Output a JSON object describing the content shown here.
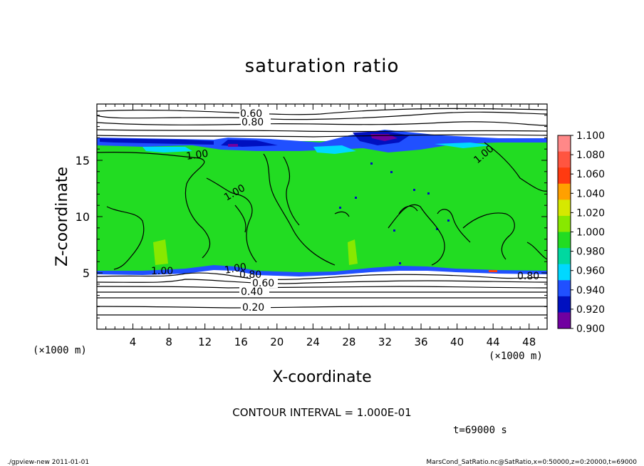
{
  "chart_data": {
    "type": "heatmap",
    "title": "saturation ratio",
    "xlabel": "X-coordinate",
    "ylabel": "Z-coordinate",
    "x_unit": "(×1000 m)",
    "y_unit": "(×1000 m)",
    "xlim": [
      0,
      50
    ],
    "ylim": [
      0,
      20
    ],
    "x_ticks": [
      4,
      8,
      12,
      16,
      20,
      24,
      28,
      32,
      36,
      40,
      44,
      48
    ],
    "y_ticks": [
      5,
      10,
      15
    ],
    "colorbar": {
      "levels": [
        1.1,
        1.08,
        1.06,
        1.04,
        1.02,
        1.0,
        0.98,
        0.96,
        0.94,
        0.92,
        0.9
      ],
      "labels": [
        "1.100",
        "1.080",
        "1.060",
        "1.040",
        "1.020",
        "1.000",
        "0.980",
        "0.960",
        "0.940",
        "0.920",
        "0.900"
      ],
      "colors": [
        "#ff8888",
        "#ff5540",
        "#ff3a10",
        "#ffa000",
        "#d6e800",
        "#88e800",
        "#22dc22",
        "#00d8a0",
        "#00d8ff",
        "#2050ff",
        "#0010c0",
        "#7000a0"
      ]
    },
    "contour_labels": [
      "0.60",
      "0.80",
      "1.00",
      "1.00",
      "1.00",
      "1.00",
      "1.00",
      "0.80",
      "0.60",
      "0.40",
      "0.20",
      "0.80"
    ],
    "contour_interval": "CONTOUR INTERVAL = 1.000E-01",
    "time": "t=69000 s"
  },
  "footer": {
    "left": "./gpview-new   2011-01-01",
    "right": "MarsCond_SatRatio.nc@SatRatio,x=0:50000,z=0:20000,t=69000"
  }
}
